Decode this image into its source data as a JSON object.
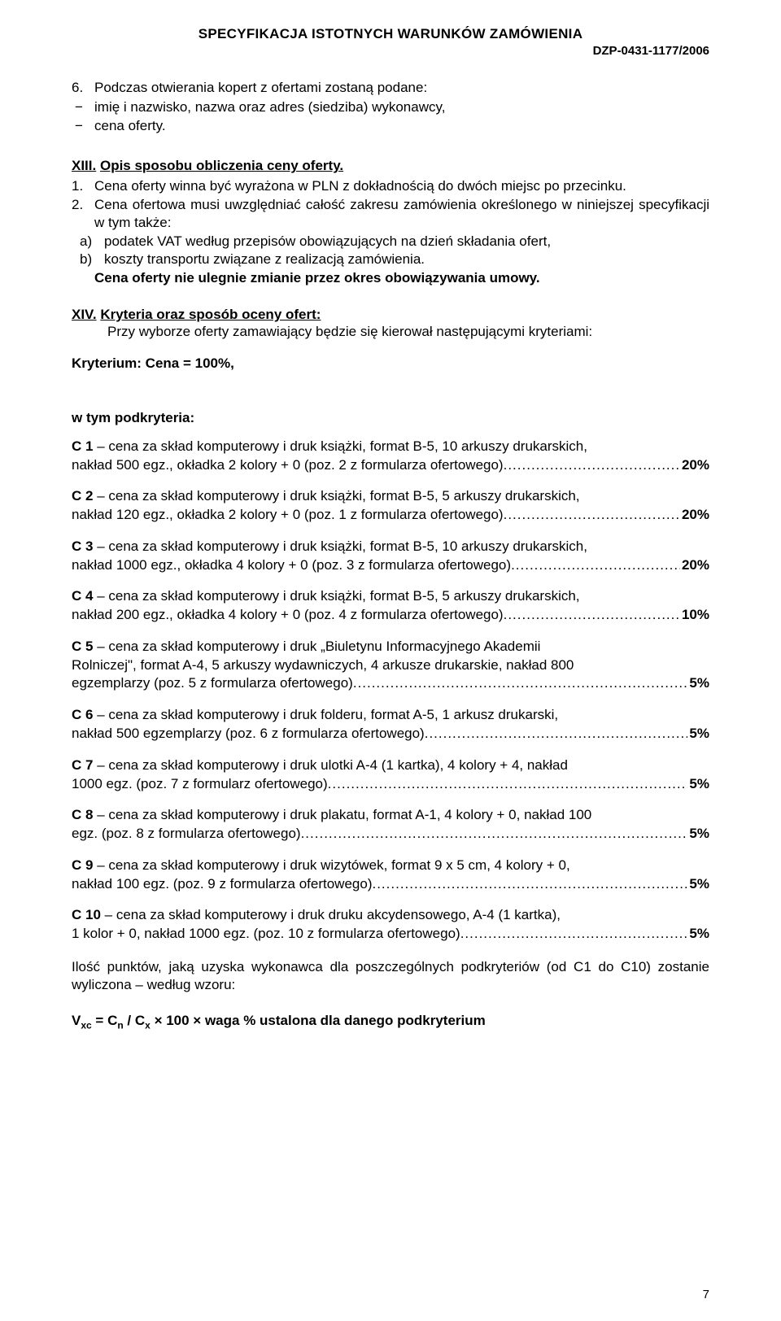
{
  "header": {
    "title": "SPECYFIKACJA ISTOTNYCH WARUNKÓW ZAMÓWIENIA",
    "code": "DZP-0431-1177/2006"
  },
  "item6": {
    "num": "6.",
    "text": "Podczas otwierania kopert z ofertami zostaną podane:",
    "dash1": "imię i nazwisko, nazwa oraz adres (siedziba) wykonawcy,",
    "dash2": "cena oferty."
  },
  "sectionXIII": {
    "roman": "XIII.",
    "title": "Opis sposobu obliczenia ceny oferty.",
    "p1_num": "1.",
    "p1_text": "Cena oferty winna być wyrażona w PLN z dokładnością do dwóch miejsc po przecinku.",
    "p2_num": "2.",
    "p2_text": "Cena ofertowa musi uwzględniać całość zakresu zamówienia określonego w niniejszej specyfikacji w tym także:",
    "p2a_num": "a)",
    "p2a_text": "podatek VAT według przepisów obowiązujących na dzień składania ofert,",
    "p2b_num": "b)",
    "p2b_text": "koszty transportu związane z realizacją zamówienia.",
    "p2_bold": "Cena oferty nie ulegnie zmianie przez okres obowiązywania umowy."
  },
  "sectionXIV": {
    "roman": "XIV.",
    "title": "Kryteria oraz sposób oceny ofert:",
    "intro": "Przy wyborze oferty zamawiający będzie się kierował następującymi kryteriami:",
    "kryterium": "Kryterium:  Cena  = 100%,",
    "subheader": "w tym podkryteria:"
  },
  "criteria": [
    {
      "label": "C 1",
      "body": " – cena za skład komputerowy i druk książki, format B-5, 10 arkuszy drukarskich, nakład 500 egz., okładka 2 kolory + 0 (poz. 2 z formularza ofertowego)",
      "tail_prefix": "nakład 500 egz., okładka 2 kolory + 0 (poz. 2 z formularza ofertowego)",
      "line1": " – cena za skład komputerowy i druk książki, format B-5, 10 arkuszy drukarskich,",
      "pct": "20%"
    },
    {
      "label": "C 2",
      "line1": " – cena za skład komputerowy i druk książki, format B-5, 5 arkuszy drukarskich,",
      "tail_prefix": "nakład 120 egz., okładka 2 kolory + 0 (poz. 1 z formularza ofertowego)",
      "pct": "20%"
    },
    {
      "label": "C 3",
      "line1": " – cena za skład komputerowy i druk książki, format B-5, 10 arkuszy drukarskich,",
      "tail_prefix": "nakład 1000 egz., okładka 4 kolory + 0 (poz. 3 z formularza ofertowego)",
      "pct": "20%"
    },
    {
      "label": "C 4",
      "line1": " – cena za skład komputerowy i druk książki, format B-5, 5 arkuszy drukarskich,",
      "tail_prefix": "nakład 200 egz., okładka 4 kolory + 0 (poz. 4 z formularza ofertowego)",
      "pct": "10%"
    },
    {
      "label": "C 5",
      "line1": " – cena za skład komputerowy i druk „Biuletynu Informacyjnego Akademii",
      "line2": "Rolniczej\", format A-4, 5 arkuszy wydawniczych, 4 arkusze drukarskie, nakład 800",
      "tail_prefix": "egzemplarzy (poz. 5 z formularza ofertowego)",
      "pct": "5%"
    },
    {
      "label": "C 6",
      "line1": " – cena za skład komputerowy i druk folderu, format A-5, 1 arkusz drukarski,",
      "tail_prefix": "nakład 500 egzemplarzy (poz. 6 z formularza ofertowego)",
      "pct": "5%"
    },
    {
      "label": "C 7",
      "line1": " – cena za skład komputerowy i druk ulotki A-4 (1 kartka), 4 kolory + 4, nakład",
      "tail_prefix": "1000 egz. (poz. 7 z formularz ofertowego)",
      "pct": "5%"
    },
    {
      "label": "C 8",
      "line1": " – cena za skład komputerowy i druk plakatu,  format A-1, 4 kolory + 0, nakład 100",
      "tail_prefix": "egz. (poz. 8 z formularza ofertowego)",
      "pct": "5%"
    },
    {
      "label": "C 9",
      "line1": " – cena za skład komputerowy i druk wizytówek, format 9 x 5 cm, 4 kolory + 0,",
      "tail_prefix": "nakład 100 egz. (poz. 9 z formularza ofertowego)",
      "pct": "5%"
    },
    {
      "label": "C 10",
      "line1": " – cena za skład komputerowy i druk druku akcydensowego, A-4 (1 kartka),",
      "tail_prefix": "1 kolor + 0, nakład 1000 egz.  (poz. 10 z formularza ofertowego)",
      "pct": "5%"
    }
  ],
  "closing": "Ilość punktów, jaką uzyska wykonawca dla poszczególnych podkryteriów (od C1 do C10) zostanie wyliczona – według wzoru:",
  "formula": {
    "lhs": "V",
    "lhs_sub": "xc",
    "eq": " = C",
    "n_sub": "n",
    "slash": " / C",
    "x_sub": "x",
    "mul1": " × 100 × waga % ustalona dla danego podkryterium"
  },
  "page_number": "7"
}
